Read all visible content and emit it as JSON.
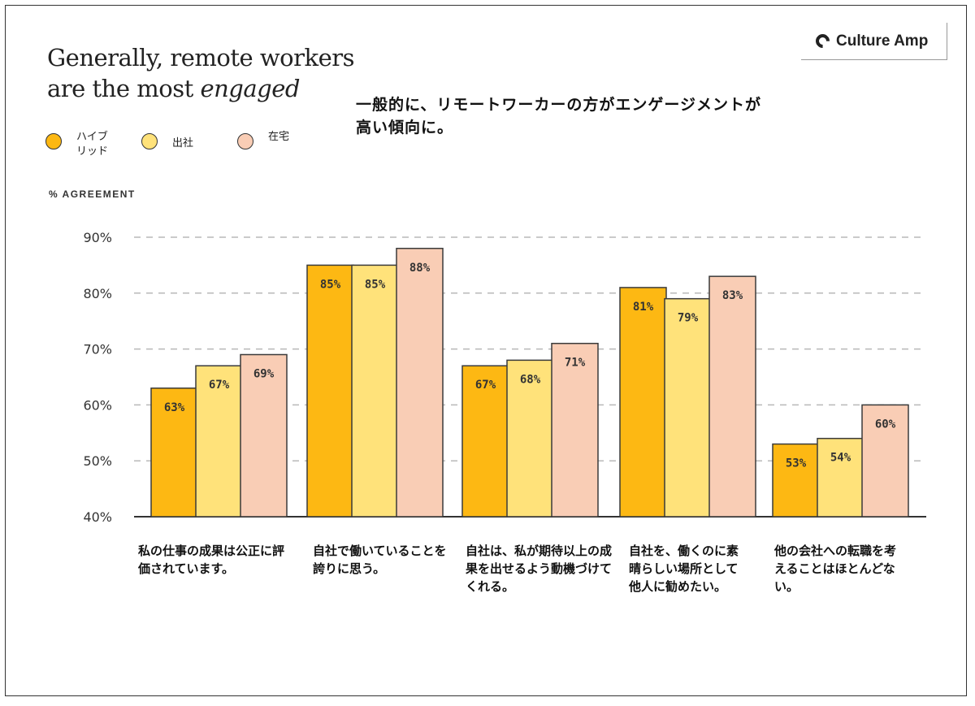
{
  "title": {
    "line1": "Generally, remote workers",
    "line2_prefix": "are the most ",
    "line2_italic": "engaged"
  },
  "note": "一般的に、リモートワーカーの方がエンゲージメントが高い傾向に。",
  "logo": {
    "icon": "culture-amp-logo-icon",
    "text": "Culture Amp"
  },
  "legend": [
    {
      "label": "ハイブリッド",
      "color": "#FDB813"
    },
    {
      "label": "出社",
      "color": "#FFE27A"
    },
    {
      "label": "在宅",
      "color": "#F9CDB5"
    }
  ],
  "axis_caption": "% AGREEMENT",
  "chart_data": {
    "type": "bar",
    "ylabel": "% AGREEMENT",
    "ylim": [
      40,
      90
    ],
    "yticks": [
      "40%",
      "50%",
      "60%",
      "70%",
      "80%",
      "90%"
    ],
    "ytick_values": [
      40,
      50,
      60,
      70,
      80,
      90
    ],
    "grid": true,
    "categories": [
      "私の仕事の成果は公正に評価されています。",
      "自社で働いていることを誇りに思う。",
      "自社は、私が期待以上の成果を出せるよう動機づけてくれる。",
      "自社を、働くのに素晴らしい場所として他人に勧めたい。",
      "他の会社への転職を考えることはほとんどない。"
    ],
    "series": [
      {
        "name": "ハイブリッド",
        "color": "#FDB813",
        "values": [
          63,
          85,
          67,
          81,
          53
        ],
        "labels": [
          "63%",
          "85%",
          "67%",
          "81%",
          "53%"
        ]
      },
      {
        "name": "出社",
        "color": "#FFE27A",
        "values": [
          67,
          85,
          68,
          79,
          54
        ],
        "labels": [
          "67%",
          "85%",
          "68%",
          "79%",
          "54%"
        ]
      },
      {
        "name": "在宅",
        "color": "#F9CDB5",
        "values": [
          69,
          88,
          71,
          83,
          60
        ],
        "labels": [
          "69%",
          "88%",
          "71%",
          "83%",
          "60%"
        ]
      }
    ]
  }
}
